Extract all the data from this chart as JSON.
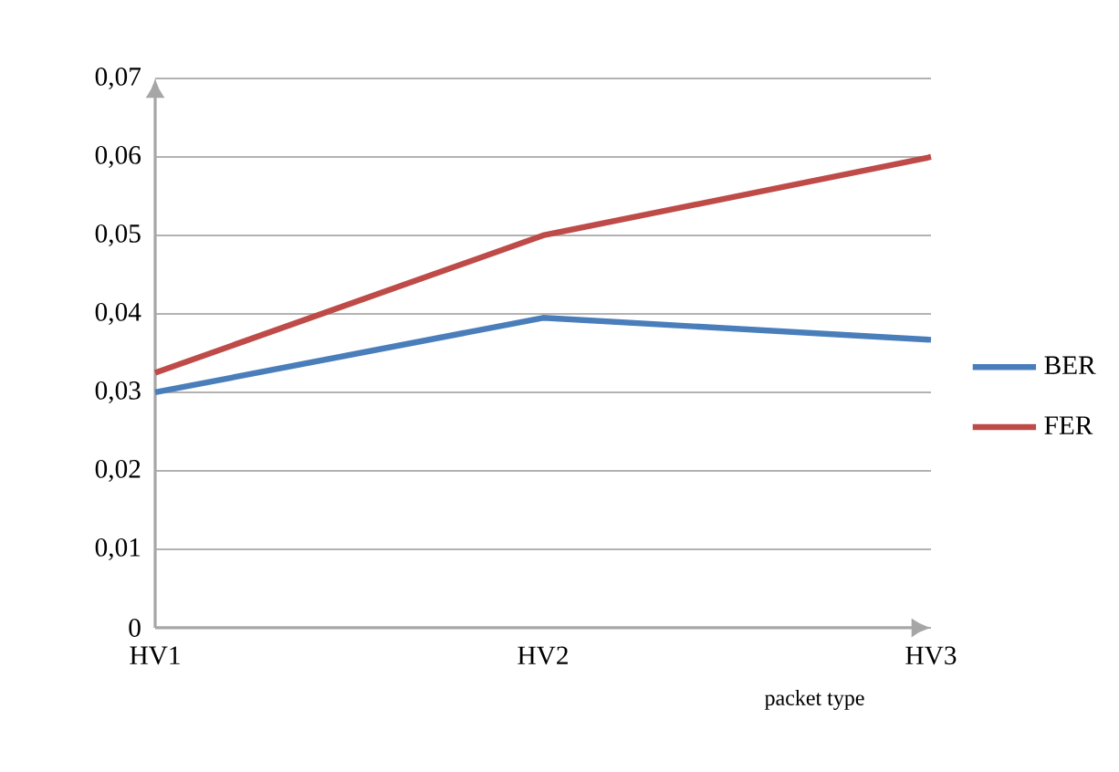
{
  "chart_data": {
    "type": "line",
    "xlabel": "packet type",
    "categories": [
      "HV1",
      "HV2",
      "HV3"
    ],
    "series": [
      {
        "name": "BER",
        "color": "#4a7ebb",
        "values": [
          0.03,
          0.0395,
          0.0367
        ]
      },
      {
        "name": "FER",
        "color": "#be4b48",
        "values": [
          0.0325,
          0.05,
          0.06
        ]
      }
    ],
    "ylim": [
      0,
      0.07
    ],
    "yticks": [
      {
        "value": 0,
        "label": "0"
      },
      {
        "value": 0.01,
        "label": "0,01"
      },
      {
        "value": 0.02,
        "label": "0,02"
      },
      {
        "value": 0.03,
        "label": "0,03"
      },
      {
        "value": 0.04,
        "label": "0,04"
      },
      {
        "value": 0.05,
        "label": "0,05"
      },
      {
        "value": 0.06,
        "label": "0,06"
      },
      {
        "value": 0.07,
        "label": "0,07"
      }
    ],
    "grid": "y",
    "legend": "right"
  }
}
